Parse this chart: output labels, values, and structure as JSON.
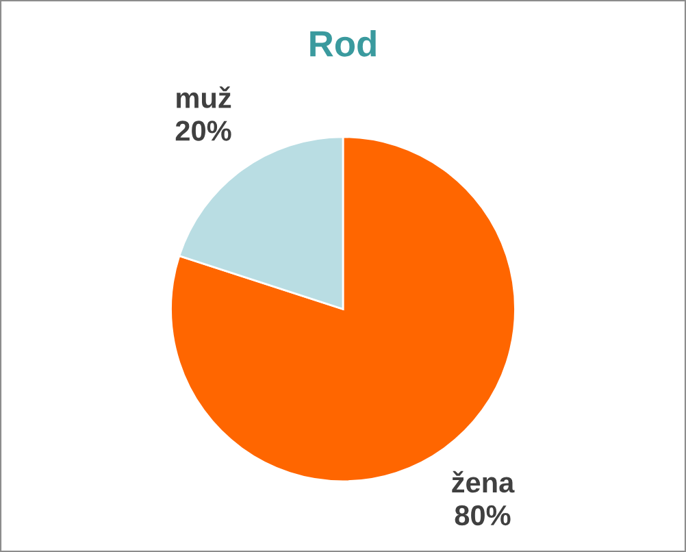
{
  "chart_data": {
    "type": "pie",
    "title": "Rod",
    "categories": [
      "žena",
      "muž"
    ],
    "values": [
      80,
      20
    ],
    "colors": [
      "#ff6600",
      "#b9dde3"
    ],
    "value_labels": [
      "80%",
      "20%"
    ],
    "legend": false
  }
}
